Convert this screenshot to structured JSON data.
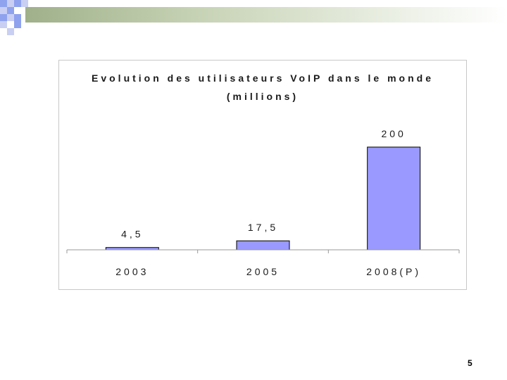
{
  "slide": {
    "page_number": "5"
  },
  "colors": {
    "bar_fill": "#9999ff",
    "bar_stroke": "#000000",
    "decoration_blue": "#8fa2ee",
    "decoration_lavender": "#c9cff2",
    "decoration_green": "#9fb08a"
  },
  "chart_data": {
    "type": "bar",
    "title": "Evolution des utilisateurs VoIP dans le monde",
    "subtitle": "(millions)",
    "categories": [
      "2003",
      "2005",
      "2008(P)"
    ],
    "values": [
      4.5,
      17.5,
      200
    ],
    "data_labels": [
      "4,5",
      "17,5",
      "200"
    ],
    "ylim": [
      0,
      200
    ],
    "grid": false,
    "legend": "none",
    "xlabel": "",
    "ylabel": ""
  }
}
